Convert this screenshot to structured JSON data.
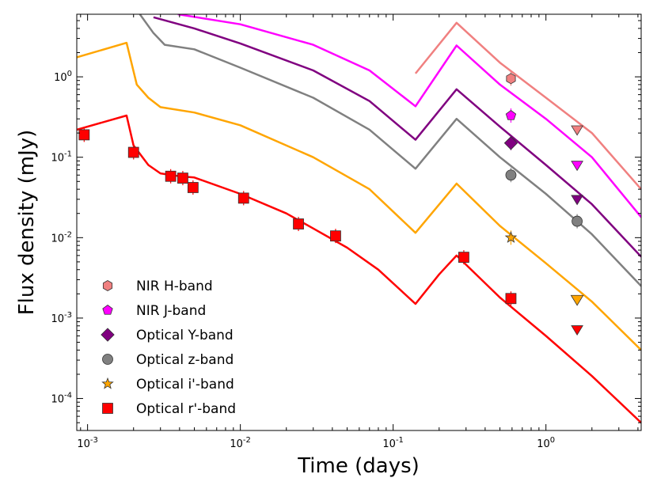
{
  "chart_data": {
    "type": "scatter",
    "xlabel": "Time (days)",
    "ylabel": "Flux density (mJy)",
    "xscale": "log",
    "yscale": "log",
    "xlim": [
      0.00085,
      4.2
    ],
    "ylim": [
      4e-05,
      6.0
    ],
    "x_ticks": [
      {
        "value": 0.001,
        "base": "10",
        "exp": "-3"
      },
      {
        "value": 0.01,
        "base": "10",
        "exp": "-2"
      },
      {
        "value": 0.1,
        "base": "10",
        "exp": "-1"
      },
      {
        "value": 1,
        "base": "10",
        "exp": "0"
      }
    ],
    "y_ticks": [
      {
        "value": 0.0001,
        "base": "10",
        "exp": "-4"
      },
      {
        "value": 0.001,
        "base": "10",
        "exp": "-3"
      },
      {
        "value": 0.01,
        "base": "10",
        "exp": "-2"
      },
      {
        "value": 0.1,
        "base": "10",
        "exp": "-1"
      },
      {
        "value": 1,
        "base": "10",
        "exp": "0"
      }
    ],
    "legend_position": "lower-left",
    "series": [
      {
        "name": "NIR H-band",
        "color": "#f08080",
        "marker": "hexagon",
        "model": {
          "x": [
            0.14,
            0.26,
            0.5,
            1.0,
            2.0,
            4.2
          ],
          "y": [
            1.1,
            4.7,
            1.5,
            0.55,
            0.2,
            0.04
          ]
        },
        "points": [
          {
            "x": 0.59,
            "y": 0.95,
            "upper_limit": false
          }
        ],
        "limits": [
          {
            "x": 1.6,
            "y": 0.22,
            "upper_limit": true
          }
        ]
      },
      {
        "name": "NIR J-band",
        "color": "#ff00ff",
        "marker": "pentagon",
        "model": {
          "x": [
            0.0039,
            0.01,
            0.03,
            0.07,
            0.14,
            0.26,
            0.5,
            1.0,
            2.0,
            4.2
          ],
          "y": [
            6.0,
            4.5,
            2.5,
            1.2,
            0.43,
            2.45,
            0.8,
            0.3,
            0.1,
            0.018
          ]
        },
        "points": [
          {
            "x": 0.59,
            "y": 0.33,
            "upper_limit": false
          }
        ],
        "limits": [
          {
            "x": 1.6,
            "y": 0.08,
            "upper_limit": true
          }
        ]
      },
      {
        "name": "Optical Y-band",
        "color": "#800080",
        "marker": "diamond",
        "model": {
          "x": [
            0.0027,
            0.005,
            0.01,
            0.03,
            0.07,
            0.14,
            0.26,
            0.5,
            1.0,
            2.0,
            4.2
          ],
          "y": [
            5.5,
            4.0,
            2.6,
            1.2,
            0.5,
            0.165,
            0.7,
            0.24,
            0.08,
            0.026,
            0.0058
          ]
        },
        "points": [
          {
            "x": 0.59,
            "y": 0.15,
            "upper_limit": false
          }
        ],
        "limits": [
          {
            "x": 1.6,
            "y": 0.03,
            "upper_limit": true
          }
        ]
      },
      {
        "name": "Optical z-band",
        "color": "#808080",
        "marker": "circle",
        "model": {
          "x": [
            0.0022,
            0.0027,
            0.0032,
            0.005,
            0.01,
            0.03,
            0.07,
            0.14,
            0.26,
            0.5,
            1.0,
            2.0,
            4.2
          ],
          "y": [
            6.0,
            3.5,
            2.5,
            2.2,
            1.3,
            0.55,
            0.22,
            0.072,
            0.3,
            0.1,
            0.035,
            0.011,
            0.0025
          ]
        },
        "points": [
          {
            "x": 0.59,
            "y": 0.06,
            "upper_limit": false
          },
          {
            "x": 1.6,
            "y": 0.016,
            "upper_limit": false
          }
        ],
        "limits": []
      },
      {
        "name": "Optical i'-band",
        "color": "#ffa500",
        "marker": "star",
        "model": {
          "x": [
            0.00085,
            0.0018,
            0.0021,
            0.0025,
            0.003,
            0.005,
            0.01,
            0.03,
            0.07,
            0.14,
            0.26,
            0.5,
            1.0,
            2.0,
            4.2
          ],
          "y": [
            1.75,
            2.65,
            0.8,
            0.55,
            0.42,
            0.36,
            0.25,
            0.1,
            0.04,
            0.0115,
            0.047,
            0.014,
            0.0048,
            0.0016,
            0.0004
          ]
        },
        "points": [
          {
            "x": 0.59,
            "y": 0.01,
            "upper_limit": false
          }
        ],
        "limits": [
          {
            "x": 1.6,
            "y": 0.0017,
            "upper_limit": true
          }
        ]
      },
      {
        "name": "Optical r'-band",
        "color": "#ff0000",
        "marker": "square",
        "model": {
          "x": [
            0.00085,
            0.0018,
            0.002,
            0.0025,
            0.003,
            0.004,
            0.005,
            0.01,
            0.02,
            0.03,
            0.05,
            0.08,
            0.14,
            0.2,
            0.26,
            0.5,
            1.0,
            2.0,
            4.2
          ],
          "y": [
            0.22,
            0.33,
            0.14,
            0.08,
            0.063,
            0.058,
            0.056,
            0.035,
            0.02,
            0.013,
            0.0075,
            0.004,
            0.0015,
            0.0035,
            0.006,
            0.0018,
            0.0006,
            0.00019,
            5e-05
          ]
        },
        "points": [
          {
            "x": 0.00095,
            "y": 0.19,
            "upper_limit": false
          },
          {
            "x": 0.002,
            "y": 0.115,
            "upper_limit": false
          },
          {
            "x": 0.0035,
            "y": 0.058,
            "upper_limit": false
          },
          {
            "x": 0.0042,
            "y": 0.055,
            "upper_limit": false
          },
          {
            "x": 0.0049,
            "y": 0.042,
            "upper_limit": false
          },
          {
            "x": 0.0105,
            "y": 0.031,
            "upper_limit": false
          },
          {
            "x": 0.024,
            "y": 0.0148,
            "upper_limit": false
          },
          {
            "x": 0.042,
            "y": 0.0105,
            "upper_limit": false
          },
          {
            "x": 0.29,
            "y": 0.0057,
            "upper_limit": false
          },
          {
            "x": 0.59,
            "y": 0.00175,
            "upper_limit": false
          }
        ],
        "limits": [
          {
            "x": 1.6,
            "y": 0.00072,
            "upper_limit": true
          }
        ]
      }
    ]
  }
}
